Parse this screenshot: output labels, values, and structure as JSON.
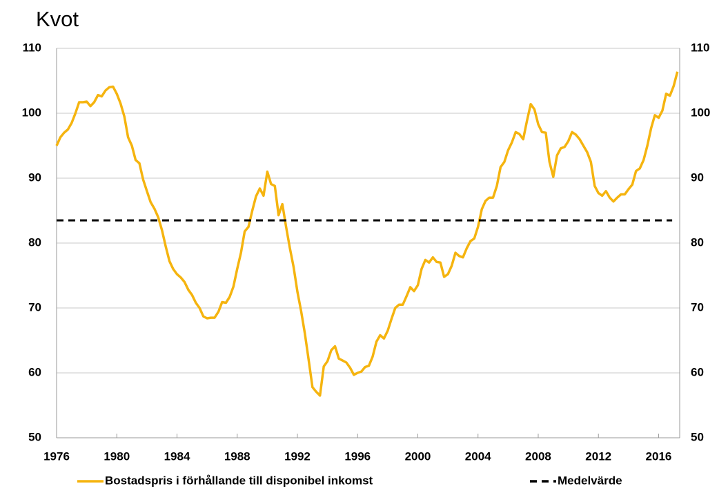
{
  "chart_data": {
    "type": "line",
    "title": "Kvot",
    "xlim": [
      1976,
      2017.4
    ],
    "xticks": [
      1976,
      1980,
      1984,
      1988,
      1992,
      1996,
      2000,
      2004,
      2008,
      2012,
      2016
    ],
    "ylim": [
      50,
      110
    ],
    "yticks": [
      50,
      60,
      70,
      80,
      90,
      100,
      110
    ],
    "y2lim": [
      50,
      110
    ],
    "y2ticks": [
      50,
      60,
      70,
      80,
      90,
      100,
      110
    ],
    "grid": true,
    "legend": "bottom",
    "series": [
      {
        "name": "Bostadspris i förhållande till disponibel inkomst",
        "color": "#f5b40f",
        "dashed": false,
        "x": [
          1976,
          1976.25,
          1976.5,
          1976.75,
          1977,
          1977.25,
          1977.5,
          1977.75,
          1978,
          1978.25,
          1978.5,
          1978.75,
          1979,
          1979.25,
          1979.5,
          1979.75,
          1980,
          1980.25,
          1980.5,
          1980.75,
          1981,
          1981.25,
          1981.5,
          1981.75,
          1982,
          1982.25,
          1982.5,
          1982.75,
          1983,
          1983.25,
          1983.5,
          1983.75,
          1984,
          1984.25,
          1984.5,
          1984.75,
          1985,
          1985.25,
          1985.5,
          1985.75,
          1986,
          1986.25,
          1986.5,
          1986.75,
          1987,
          1987.25,
          1987.5,
          1987.75,
          1988,
          1988.25,
          1988.5,
          1988.75,
          1989,
          1989.25,
          1989.5,
          1989.75,
          1990,
          1990.25,
          1990.5,
          1990.75,
          1991,
          1991.25,
          1991.5,
          1991.75,
          1992,
          1992.25,
          1992.5,
          1992.75,
          1993,
          1993.25,
          1993.5,
          1993.75,
          1994,
          1994.25,
          1994.5,
          1994.75,
          1995,
          1995.25,
          1995.5,
          1995.75,
          1996,
          1996.25,
          1996.5,
          1996.75,
          1997,
          1997.25,
          1997.5,
          1997.75,
          1998,
          1998.25,
          1998.5,
          1998.75,
          1999,
          1999.25,
          1999.5,
          1999.75,
          2000,
          2000.25,
          2000.5,
          2000.75,
          2001,
          2001.25,
          2001.5,
          2001.75,
          2002,
          2002.25,
          2002.5,
          2002.75,
          2003,
          2003.25,
          2003.5,
          2003.75,
          2004,
          2004.25,
          2004.5,
          2004.75,
          2005,
          2005.25,
          2005.5,
          2005.75,
          2006,
          2006.25,
          2006.5,
          2006.75,
          2007,
          2007.25,
          2007.5,
          2007.75,
          2008,
          2008.25,
          2008.5,
          2008.75,
          2009,
          2009.25,
          2009.5,
          2009.75,
          2010,
          2010.25,
          2010.5,
          2010.75,
          2011,
          2011.25,
          2011.5,
          2011.75,
          2012,
          2012.25,
          2012.5,
          2012.75,
          2013,
          2013.25,
          2013.5,
          2013.75,
          2014,
          2014.25,
          2014.5,
          2014.75,
          2015,
          2015.25,
          2015.5,
          2015.75,
          2016,
          2016.25,
          2016.5,
          2016.75,
          2017,
          2017.25
        ],
        "values": [
          95,
          96.3,
          97,
          97.5,
          98.5,
          100,
          101.7,
          101.7,
          101.8,
          101.1,
          101.7,
          102.8,
          102.6,
          103.5,
          104,
          104.1,
          103,
          101.5,
          99.5,
          96.3,
          95,
          92.8,
          92.3,
          89.8,
          88,
          86.3,
          85.3,
          84,
          82,
          79.5,
          77.2,
          76,
          75.2,
          74.7,
          74,
          72.8,
          72,
          70.8,
          70,
          68.7,
          68.4,
          68.5,
          68.5,
          69.4,
          70.9,
          70.8,
          71.7,
          73.3,
          76,
          78.5,
          81.8,
          82.5,
          85,
          87.2,
          88.4,
          87.3,
          91,
          89.1,
          88.8,
          84.3,
          86,
          82.5,
          79.2,
          76.3,
          72.5,
          69.5,
          66,
          62,
          57.8,
          57.1,
          56.5,
          61,
          61.8,
          63.5,
          64.1,
          62.2,
          61.9,
          61.6,
          60.8,
          59.7,
          60,
          60.2,
          60.9,
          61.1,
          62.5,
          64.8,
          65.8,
          65.3,
          66.5,
          68.3,
          70,
          70.5,
          70.5,
          71.8,
          73.2,
          72.6,
          73.5,
          76,
          77.4,
          77,
          77.8,
          77.1,
          77,
          74.8,
          75.2,
          76.5,
          78.5,
          78,
          77.8,
          79.2,
          80.3,
          80.7,
          82.5,
          85.2,
          86.5,
          87,
          87,
          88.8,
          91.7,
          92.5,
          94.3,
          95.5,
          97.1,
          96.8,
          96,
          98.8,
          101.4,
          100.6,
          98.3,
          97.1,
          97,
          92.5,
          90.2,
          93.5,
          94.6,
          94.8,
          95.7,
          97.1,
          96.7,
          96,
          95,
          94,
          92.5,
          88.8,
          87.7,
          87.3,
          88,
          87,
          86.4,
          87,
          87.5,
          87.5,
          88.3,
          89,
          91.1,
          91.5,
          92.8,
          95,
          97.7,
          99.7,
          99.3,
          100.4,
          103,
          102.7,
          104.2,
          106.4
        ]
      },
      {
        "name": "Medelvärde",
        "color": "#000000",
        "dashed": true,
        "x": [
          1976,
          2016.9
        ],
        "values": [
          83.5,
          83.5
        ]
      }
    ]
  }
}
